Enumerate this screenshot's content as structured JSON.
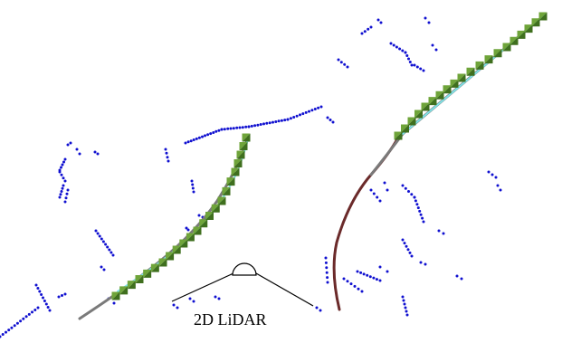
{
  "sensor": {
    "label": "2D LiDAR",
    "icon": "lidar-sensor-icon"
  },
  "colors": {
    "scan_points": "#1010d0",
    "path_gray": "#7a7a7a",
    "path_brown": "#6b2a2a",
    "path_cyan": "#7fe3e8",
    "marker_dark": "#3f6f1e",
    "marker_light": "#6fa43a",
    "sensor_outline": "#000000"
  }
}
